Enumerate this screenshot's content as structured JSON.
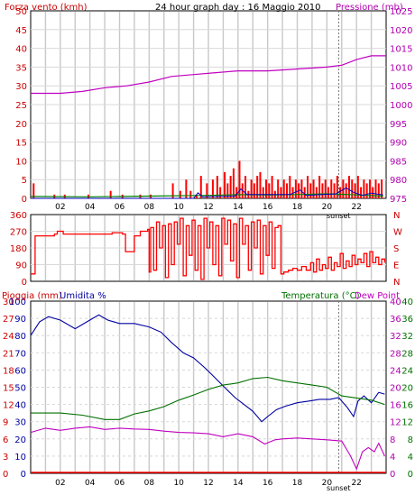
{
  "header": {
    "title": "24 hour graph day : 16 Maggio 2010",
    "left_label": "Forza vento (kmh)",
    "right_label": "Pressione (mb)"
  },
  "colors": {
    "grid_vertical": "#c8c8c8",
    "grid_horizontal": "#d8d8d8",
    "wind": "#ff0000",
    "gust_green": "#008000",
    "gust_blue": "#0000c0",
    "pressure": "#c000c0",
    "direction": "#ff0000",
    "humidity": "#0000a0",
    "temperature": "#007000",
    "dewpoint": "#c000c0",
    "rain": "#ff0000",
    "text_red": "#cc0000",
    "text_magenta": "#b000b0",
    "text_green": "#007000",
    "text_blue": "#0000a0"
  },
  "sunset_label": "sunset",
  "chart_data": [
    {
      "type": "bar",
      "panel": "wind_pressure",
      "left_axis": {
        "label": "Forza vento (kmh)",
        "ylim": [
          0,
          50
        ],
        "ticks": [
          "0",
          "5",
          "10",
          "15",
          "20",
          "25",
          "30",
          "35",
          "40",
          "45",
          "50"
        ]
      },
      "right_axis": {
        "label": "Pressione (mb)",
        "ylim": [
          975,
          1025
        ],
        "ticks": [
          "975",
          "980",
          "985",
          "990",
          "995",
          "1000",
          "1005",
          "1010",
          "1015",
          "1020",
          "1025"
        ]
      },
      "x_ticks": [
        "02",
        "04",
        "06",
        "08",
        "10",
        "12",
        "14",
        "16",
        "18",
        "20",
        "22"
      ],
      "wind_bars": [
        [
          0.2,
          4
        ],
        [
          1.6,
          1
        ],
        [
          2.3,
          1
        ],
        [
          3.9,
          1
        ],
        [
          5.4,
          2
        ],
        [
          6.2,
          1
        ],
        [
          7.4,
          1
        ],
        [
          8.1,
          1
        ],
        [
          9.6,
          4
        ],
        [
          10.1,
          2
        ],
        [
          10.5,
          5
        ],
        [
          10.8,
          2
        ],
        [
          11.2,
          1
        ],
        [
          11.5,
          6
        ],
        [
          11.9,
          4
        ],
        [
          12.3,
          5
        ],
        [
          12.6,
          6
        ],
        [
          12.8,
          3
        ],
        [
          13.1,
          7
        ],
        [
          13.3,
          4
        ],
        [
          13.5,
          6
        ],
        [
          13.7,
          8
        ],
        [
          13.9,
          3
        ],
        [
          14.1,
          10
        ],
        [
          14.3,
          4
        ],
        [
          14.5,
          6
        ],
        [
          14.7,
          2
        ],
        [
          14.9,
          5
        ],
        [
          15.1,
          4
        ],
        [
          15.3,
          6
        ],
        [
          15.5,
          7
        ],
        [
          15.7,
          3
        ],
        [
          15.9,
          5
        ],
        [
          16.1,
          4
        ],
        [
          16.3,
          6
        ],
        [
          16.5,
          2
        ],
        [
          16.7,
          5
        ],
        [
          16.9,
          3
        ],
        [
          17.1,
          5
        ],
        [
          17.3,
          4
        ],
        [
          17.5,
          6
        ],
        [
          17.7,
          3
        ],
        [
          17.9,
          5
        ],
        [
          18.1,
          4
        ],
        [
          18.3,
          5
        ],
        [
          18.5,
          3
        ],
        [
          18.7,
          6
        ],
        [
          18.9,
          4
        ],
        [
          19.1,
          5
        ],
        [
          19.3,
          3
        ],
        [
          19.5,
          6
        ],
        [
          19.7,
          4
        ],
        [
          19.9,
          5
        ],
        [
          20.1,
          3
        ],
        [
          20.3,
          5
        ],
        [
          20.5,
          4
        ],
        [
          20.7,
          6
        ],
        [
          20.9,
          3
        ],
        [
          21.1,
          5
        ],
        [
          21.3,
          4
        ],
        [
          21.5,
          6
        ],
        [
          21.7,
          5
        ],
        [
          21.9,
          4
        ],
        [
          22.1,
          6
        ],
        [
          22.3,
          3
        ],
        [
          22.5,
          5
        ],
        [
          22.7,
          4
        ],
        [
          22.9,
          5
        ],
        [
          23.1,
          3
        ],
        [
          23.3,
          5
        ],
        [
          23.5,
          4
        ],
        [
          23.7,
          5
        ]
      ],
      "gust_green": [
        [
          0,
          0.5
        ],
        [
          4,
          0.4
        ],
        [
          8,
          0.6
        ],
        [
          12,
          0.8
        ],
        [
          14,
          1.0
        ],
        [
          16,
          0.9
        ],
        [
          18,
          1.0
        ],
        [
          20,
          1.2
        ],
        [
          21.5,
          1.0
        ],
        [
          23.8,
          0.6
        ]
      ],
      "gust_blue": [
        [
          0,
          0
        ],
        [
          11,
          0
        ],
        [
          11.3,
          1.5
        ],
        [
          11.6,
          0.4
        ],
        [
          13.8,
          0.6
        ],
        [
          14.2,
          2.5
        ],
        [
          14.6,
          1.0
        ],
        [
          17.5,
          1.0
        ],
        [
          18.2,
          2.2
        ],
        [
          18.6,
          0.8
        ],
        [
          20.6,
          1.2
        ],
        [
          21.3,
          2.8
        ],
        [
          21.8,
          1.6
        ],
        [
          22.4,
          0.8
        ],
        [
          23,
          1.4
        ],
        [
          23.8,
          0.9
        ]
      ],
      "pressure": [
        [
          0,
          1003
        ],
        [
          2,
          1003
        ],
        [
          3.5,
          1003.5
        ],
        [
          5,
          1004.5
        ],
        [
          6.5,
          1005
        ],
        [
          8,
          1006
        ],
        [
          9.5,
          1007.5
        ],
        [
          11,
          1008
        ],
        [
          12.5,
          1008.5
        ],
        [
          14,
          1009
        ],
        [
          16,
          1009
        ],
        [
          18,
          1009.5
        ],
        [
          20,
          1010
        ],
        [
          21,
          1010.5
        ],
        [
          22,
          1012
        ],
        [
          23,
          1013
        ],
        [
          24,
          1013
        ]
      ]
    },
    {
      "type": "line",
      "panel": "wind_direction",
      "left_axis": {
        "ylim": [
          0,
          360
        ],
        "ticks": [
          "0",
          "90",
          "180",
          "270",
          "360"
        ]
      },
      "right_labels": [
        "N",
        "W",
        "S",
        "E",
        "N"
      ],
      "direction": [
        [
          0,
          40
        ],
        [
          0.2,
          40
        ],
        [
          0.3,
          245
        ],
        [
          1.6,
          255
        ],
        [
          1.8,
          270
        ],
        [
          2.2,
          255
        ],
        [
          5.5,
          262
        ],
        [
          6.2,
          255
        ],
        [
          6.4,
          160
        ],
        [
          6.8,
          160
        ],
        [
          7.0,
          245
        ],
        [
          7.4,
          270
        ],
        [
          7.9,
          280
        ],
        [
          8.0,
          50
        ],
        [
          8.1,
          290
        ],
        [
          8.3,
          60
        ],
        [
          8.5,
          320
        ],
        [
          8.7,
          180
        ],
        [
          8.9,
          300
        ],
        [
          9.1,
          20
        ],
        [
          9.3,
          310
        ],
        [
          9.5,
          90
        ],
        [
          9.7,
          320
        ],
        [
          9.9,
          200
        ],
        [
          10.1,
          340
        ],
        [
          10.3,
          30
        ],
        [
          10.5,
          300
        ],
        [
          10.7,
          140
        ],
        [
          10.9,
          330
        ],
        [
          11.1,
          60
        ],
        [
          11.3,
          300
        ],
        [
          11.5,
          10
        ],
        [
          11.7,
          340
        ],
        [
          11.9,
          180
        ],
        [
          12.1,
          320
        ],
        [
          12.3,
          90
        ],
        [
          12.5,
          300
        ],
        [
          12.7,
          30
        ],
        [
          12.9,
          340
        ],
        [
          13.1,
          200
        ],
        [
          13.3,
          330
        ],
        [
          13.5,
          110
        ],
        [
          13.7,
          310
        ],
        [
          13.9,
          20
        ],
        [
          14.1,
          340
        ],
        [
          14.3,
          200
        ],
        [
          14.5,
          300
        ],
        [
          14.7,
          60
        ],
        [
          14.9,
          320
        ],
        [
          15.1,
          180
        ],
        [
          15.3,
          330
        ],
        [
          15.5,
          40
        ],
        [
          15.7,
          300
        ],
        [
          15.9,
          140
        ],
        [
          16.1,
          320
        ],
        [
          16.3,
          70
        ],
        [
          16.5,
          290
        ],
        [
          16.7,
          300
        ],
        [
          16.9,
          40
        ],
        [
          17.1,
          50
        ],
        [
          17.4,
          60
        ],
        [
          17.7,
          70
        ],
        [
          18.0,
          60
        ],
        [
          18.3,
          80
        ],
        [
          18.6,
          60
        ],
        [
          18.9,
          100
        ],
        [
          19.1,
          50
        ],
        [
          19.3,
          120
        ],
        [
          19.5,
          60
        ],
        [
          19.7,
          90
        ],
        [
          19.9,
          70
        ],
        [
          20.1,
          130
        ],
        [
          20.3,
          60
        ],
        [
          20.5,
          100
        ],
        [
          20.7,
          80
        ],
        [
          20.9,
          150
        ],
        [
          21.1,
          70
        ],
        [
          21.3,
          110
        ],
        [
          21.5,
          80
        ],
        [
          21.7,
          140
        ],
        [
          21.9,
          90
        ],
        [
          22.1,
          120
        ],
        [
          22.3,
          100
        ],
        [
          22.5,
          150
        ],
        [
          22.7,
          80
        ],
        [
          22.9,
          160
        ],
        [
          23.1,
          100
        ],
        [
          23.3,
          130
        ],
        [
          23.5,
          90
        ],
        [
          23.7,
          120
        ],
        [
          23.9,
          100
        ]
      ]
    },
    {
      "type": "line",
      "panel": "humidity_temperature",
      "labels": {
        "rain": "Pioggia (mm)",
        "humidity": "Umidita %",
        "temperature": "Temperatura (°C)",
        "dewpoint": "Dew Point"
      },
      "rain_axis": {
        "ylim": [
          0,
          30
        ],
        "ticks": [
          "0",
          "3",
          "6",
          "9",
          "12",
          "15",
          "18",
          "21",
          "24",
          "27",
          "30"
        ]
      },
      "humidity_axis": {
        "ylim": [
          0,
          100
        ],
        "ticks": [
          "0",
          "10",
          "20",
          "30",
          "40",
          "50",
          "60",
          "70",
          "80",
          "90",
          "100"
        ]
      },
      "temp_axis_outer": {
        "ylim": [
          0,
          40
        ],
        "ticks": [
          "0",
          "4",
          "8",
          "12",
          "16",
          "20",
          "24",
          "28",
          "32",
          "36",
          "40"
        ]
      },
      "temp_axis_inner": {
        "ylim": [
          0,
          40
        ],
        "ticks": [
          "0",
          "4",
          "8",
          "12",
          "16",
          "20",
          "24",
          "28",
          "32",
          "36",
          "40"
        ]
      },
      "x_ticks": [
        "02",
        "04",
        "06",
        "08",
        "10",
        "12",
        "14",
        "16",
        "18",
        "20",
        "22"
      ],
      "humidity": [
        [
          0,
          80
        ],
        [
          0.6,
          88
        ],
        [
          1.2,
          91
        ],
        [
          2.0,
          89
        ],
        [
          3.0,
          84
        ],
        [
          3.8,
          88
        ],
        [
          4.6,
          92
        ],
        [
          5.2,
          89
        ],
        [
          6.0,
          87
        ],
        [
          7.0,
          87
        ],
        [
          8.0,
          85
        ],
        [
          8.8,
          82
        ],
        [
          9.5,
          76
        ],
        [
          10.3,
          70
        ],
        [
          11.0,
          67
        ],
        [
          11.8,
          61
        ],
        [
          12.5,
          55
        ],
        [
          13.2,
          49
        ],
        [
          13.8,
          44
        ],
        [
          14.4,
          40
        ],
        [
          15.0,
          36
        ],
        [
          15.6,
          30
        ],
        [
          16.0,
          33
        ],
        [
          16.6,
          37
        ],
        [
          17.2,
          39
        ],
        [
          18.0,
          41
        ],
        [
          18.8,
          42
        ],
        [
          19.5,
          43
        ],
        [
          20.2,
          43
        ],
        [
          20.8,
          44
        ],
        [
          21.4,
          38
        ],
        [
          21.8,
          33
        ],
        [
          22.1,
          42
        ],
        [
          22.5,
          45
        ],
        [
          23.0,
          41
        ],
        [
          23.5,
          47
        ],
        [
          23.9,
          46
        ]
      ],
      "temperature": [
        [
          0,
          14
        ],
        [
          2,
          14
        ],
        [
          3.5,
          13.5
        ],
        [
          5,
          12.5
        ],
        [
          6,
          12.5
        ],
        [
          7,
          13.8
        ],
        [
          8,
          14.5
        ],
        [
          9,
          15.5
        ],
        [
          10,
          17
        ],
        [
          11,
          18.2
        ],
        [
          12,
          19.5
        ],
        [
          13,
          20.5
        ],
        [
          14,
          21
        ],
        [
          15,
          22
        ],
        [
          16,
          22.3
        ],
        [
          17,
          21.5
        ],
        [
          18,
          21
        ],
        [
          19,
          20.5
        ],
        [
          20,
          20
        ],
        [
          21,
          18
        ],
        [
          22,
          17.5
        ],
        [
          23,
          17
        ],
        [
          23.9,
          16
        ]
      ],
      "dewpoint": [
        [
          0,
          9.5
        ],
        [
          1,
          10.5
        ],
        [
          2,
          10
        ],
        [
          3,
          10.5
        ],
        [
          4,
          10.8
        ],
        [
          5,
          10.2
        ],
        [
          6,
          10.5
        ],
        [
          7,
          10.3
        ],
        [
          8,
          10.2
        ],
        [
          9,
          9.8
        ],
        [
          10,
          9.5
        ],
        [
          11,
          9.4
        ],
        [
          12,
          9.2
        ],
        [
          13,
          8.5
        ],
        [
          14,
          9.2
        ],
        [
          15,
          8.5
        ],
        [
          15.8,
          6.8
        ],
        [
          16.5,
          7.8
        ],
        [
          17,
          8
        ],
        [
          18,
          8.2
        ],
        [
          19,
          8
        ],
        [
          20,
          7.8
        ],
        [
          21,
          7.5
        ],
        [
          21.6,
          4
        ],
        [
          22,
          1
        ],
        [
          22.4,
          5
        ],
        [
          22.8,
          6
        ],
        [
          23.2,
          5
        ],
        [
          23.5,
          7
        ],
        [
          23.9,
          4
        ]
      ],
      "rain": [
        [
          0,
          0
        ],
        [
          24,
          0
        ]
      ]
    }
  ]
}
